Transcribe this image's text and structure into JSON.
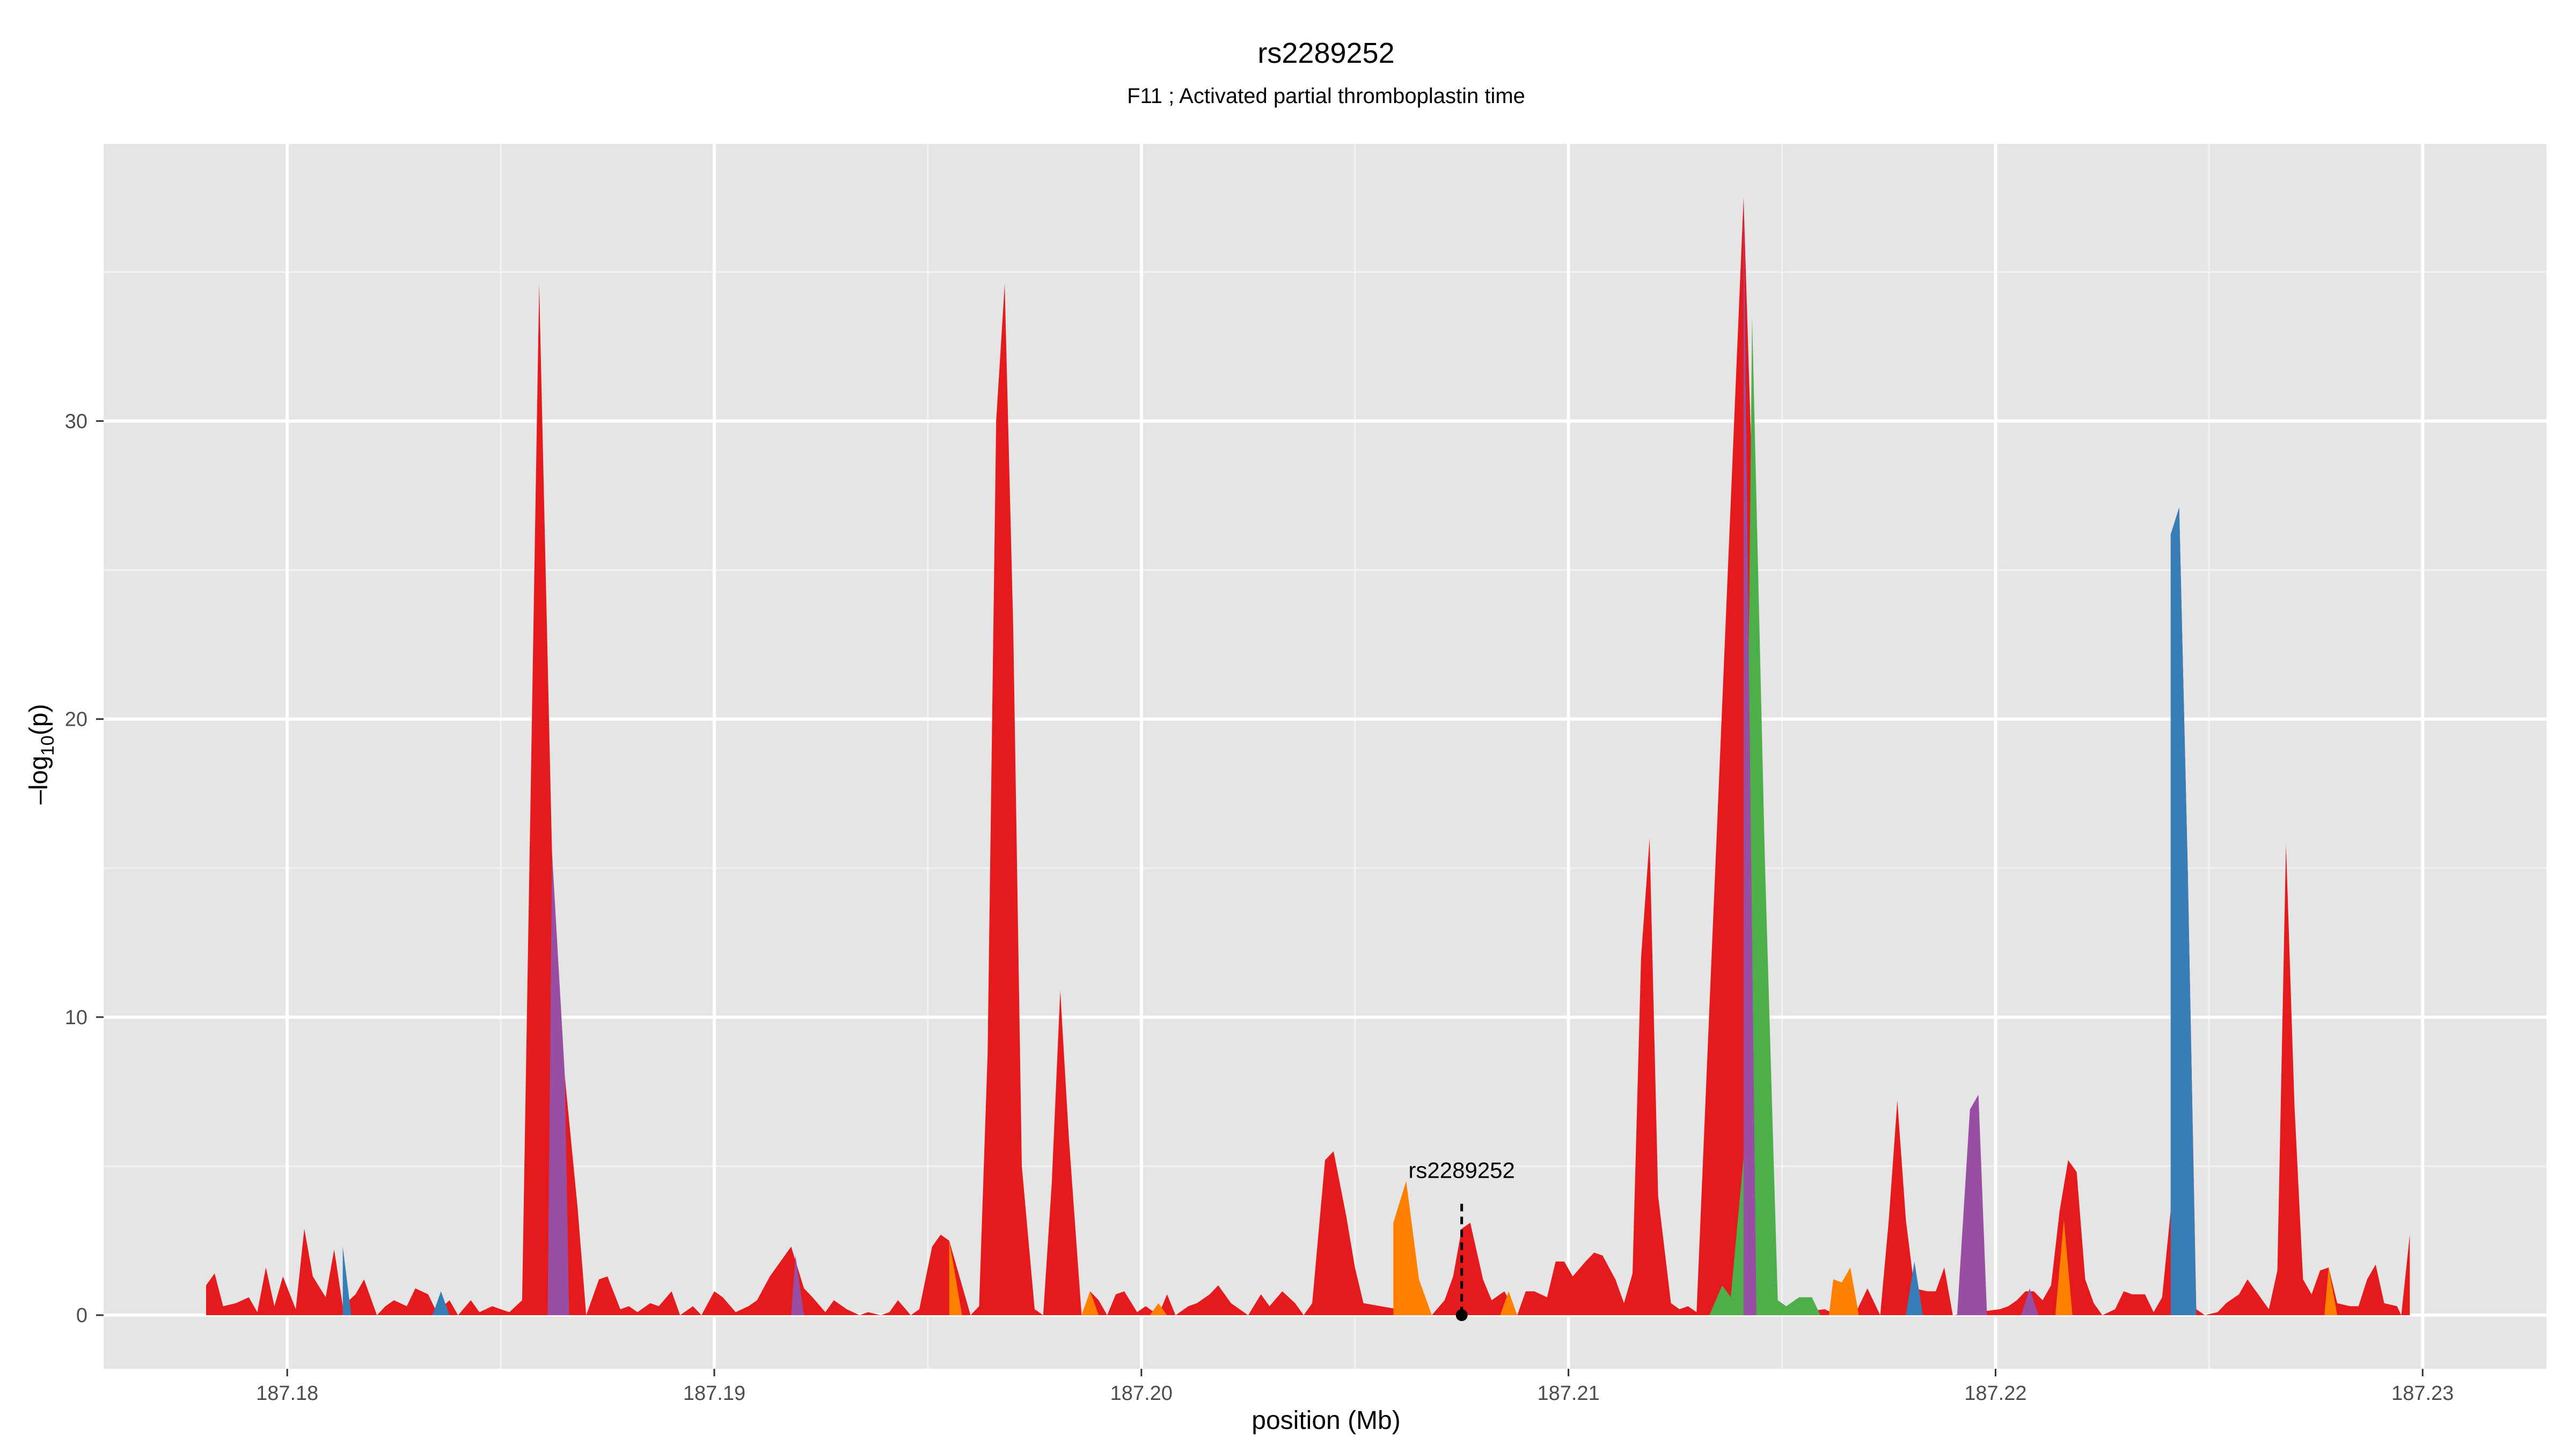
{
  "chart_data": {
    "type": "area",
    "title": "rs2289252",
    "subtitle": "F11 ; Activated partial thromboplastin time",
    "xlabel": "position (Mb)",
    "ylabel_main": "–log",
    "ylabel_sub": "10",
    "ylabel_tail": "(p)",
    "xlim": [
      187.1757,
      187.2329
    ],
    "ylim": [
      -1.8,
      39.3
    ],
    "x_ticks": [
      187.18,
      187.19,
      187.2,
      187.21,
      187.22,
      187.23
    ],
    "x_tick_labels": [
      "187.18",
      "187.19",
      "187.20",
      "187.21",
      "187.22",
      "187.23"
    ],
    "y_ticks": [
      0,
      10,
      20,
      30
    ],
    "y_tick_labels": [
      "0",
      "10",
      "20",
      "30"
    ],
    "grid": true,
    "background": "#e5e5e5",
    "colors": {
      "red": "#e41a1c",
      "blue": "#377eb8",
      "green": "#4daf4a",
      "purple": "#984ea3",
      "orange": "#ff7f00"
    },
    "annotation": {
      "label": "rs2289252",
      "x": 187.2075,
      "y": 0,
      "label_y": 4.6
    },
    "series": [
      {
        "color": "red",
        "points": [
          [
            187.1781,
            0
          ],
          [
            187.1781,
            1.0
          ],
          [
            187.1783,
            1.4
          ],
          [
            187.1785,
            0.3
          ],
          [
            187.1788,
            0.4
          ],
          [
            187.1791,
            0.6
          ],
          [
            187.1793,
            0.1
          ],
          [
            187.1795,
            1.6
          ],
          [
            187.1797,
            0.3
          ],
          [
            187.1799,
            1.3
          ],
          [
            187.1802,
            0.2
          ],
          [
            187.1804,
            2.9
          ],
          [
            187.1806,
            1.3
          ],
          [
            187.1809,
            0.6
          ],
          [
            187.1811,
            2.2
          ],
          [
            187.1813,
            0.3
          ],
          [
            187.1816,
            0.7
          ],
          [
            187.1818,
            1.2
          ],
          [
            187.1821,
            0
          ],
          [
            187.1823,
            0.3
          ],
          [
            187.1825,
            0.5
          ],
          [
            187.1828,
            0.3
          ],
          [
            187.183,
            0.9
          ],
          [
            187.1833,
            0.7
          ],
          [
            187.1835,
            0.1
          ],
          [
            187.1838,
            0.5
          ],
          [
            187.184,
            0
          ],
          [
            187.1843,
            0.5
          ],
          [
            187.1845,
            0.1
          ],
          [
            187.1848,
            0.3
          ],
          [
            187.185,
            0.2
          ],
          [
            187.1852,
            0.1
          ],
          [
            187.1855,
            0.5
          ],
          [
            187.1859,
            34.6
          ],
          [
            187.1862,
            15.5
          ],
          [
            187.1865,
            8
          ],
          [
            187.1868,
            3.6
          ],
          [
            187.187,
            0
          ],
          [
            187.1873,
            1.2
          ],
          [
            187.1875,
            1.3
          ],
          [
            187.1878,
            0.2
          ],
          [
            187.188,
            0.3
          ],
          [
            187.1882,
            0.1
          ],
          [
            187.1885,
            0.4
          ],
          [
            187.1887,
            0.3
          ],
          [
            187.189,
            0.8
          ],
          [
            187.1892,
            0
          ],
          [
            187.1895,
            0.3
          ],
          [
            187.1897,
            0
          ],
          [
            187.19,
            0.8
          ],
          [
            187.1902,
            0.6
          ],
          [
            187.1905,
            0.1
          ],
          [
            187.1908,
            0.3
          ],
          [
            187.191,
            0.5
          ],
          [
            187.1913,
            1.3
          ],
          [
            187.1918,
            2.3
          ],
          [
            187.1921,
            0.9
          ],
          [
            187.1923,
            0.6
          ],
          [
            187.1926,
            0.1
          ],
          [
            187.1928,
            0.5
          ],
          [
            187.1931,
            0.2
          ],
          [
            187.1934,
            0
          ],
          [
            187.1936,
            0.1
          ],
          [
            187.1939,
            0
          ],
          [
            187.1941,
            0.1
          ],
          [
            187.1943,
            0.5
          ],
          [
            187.1946,
            0
          ],
          [
            187.1948,
            0.2
          ],
          [
            187.1951,
            2.3
          ],
          [
            187.1953,
            2.7
          ],
          [
            187.1955,
            2.5
          ],
          [
            187.196,
            0
          ],
          [
            187.1962,
            0.3
          ],
          [
            187.1964,
            8.8
          ],
          [
            187.1966,
            30
          ],
          [
            187.1968,
            34.6
          ],
          [
            187.197,
            23
          ],
          [
            187.1972,
            5
          ],
          [
            187.1975,
            0.2
          ],
          [
            187.1977,
            0
          ],
          [
            187.1979,
            4.4
          ],
          [
            187.1981,
            10.9
          ],
          [
            187.1983,
            6
          ],
          [
            187.1986,
            0
          ],
          [
            187.1988,
            0.8
          ],
          [
            187.199,
            0.5
          ],
          [
            187.1992,
            0
          ],
          [
            187.1994,
            0.7
          ],
          [
            187.1996,
            0.8
          ],
          [
            187.1999,
            0.1
          ],
          [
            187.2001,
            0.3
          ],
          [
            187.2004,
            0
          ],
          [
            187.2006,
            0.7
          ],
          [
            187.2008,
            0
          ],
          [
            187.2011,
            0.3
          ],
          [
            187.2013,
            0.4
          ],
          [
            187.2016,
            0.7
          ],
          [
            187.2018,
            1.0
          ],
          [
            187.2021,
            0.4
          ],
          [
            187.2023,
            0.2
          ],
          [
            187.2025,
            0
          ],
          [
            187.2028,
            0.7
          ],
          [
            187.203,
            0.3
          ],
          [
            187.2033,
            0.8
          ],
          [
            187.2036,
            0.4
          ],
          [
            187.2038,
            0
          ],
          [
            187.204,
            0.4
          ],
          [
            187.2043,
            5.2
          ],
          [
            187.2045,
            5.5
          ],
          [
            187.2048,
            3.3
          ],
          [
            187.205,
            1.6
          ],
          [
            187.2052,
            0.4
          ],
          [
            187.2068,
            0
          ],
          [
            187.2071,
            0.5
          ],
          [
            187.2073,
            1.3
          ],
          [
            187.2075,
            2.9
          ],
          [
            187.2077,
            3.1
          ],
          [
            187.208,
            1.2
          ],
          [
            187.2082,
            0.5
          ],
          [
            187.2085,
            0.8
          ],
          [
            187.2088,
            0
          ],
          [
            187.209,
            0.8
          ],
          [
            187.2092,
            0.8
          ],
          [
            187.2095,
            0.6
          ],
          [
            187.2097,
            1.8
          ],
          [
            187.2099,
            1.8
          ],
          [
            187.2101,
            1.3
          ],
          [
            187.2104,
            1.8
          ],
          [
            187.2106,
            2.1
          ],
          [
            187.2108,
            2
          ],
          [
            187.2111,
            1.2
          ],
          [
            187.2113,
            0.4
          ],
          [
            187.2115,
            1.4
          ],
          [
            187.2117,
            12
          ],
          [
            187.2119,
            16
          ],
          [
            187.2121,
            4
          ],
          [
            187.2124,
            0.4
          ],
          [
            187.2126,
            0.2
          ],
          [
            187.2128,
            0.3
          ],
          [
            187.213,
            0.1
          ],
          [
            187.2141,
            37.5
          ],
          [
            187.2149,
            0
          ],
          [
            187.216,
            0.2
          ],
          [
            187.2163,
            0
          ],
          [
            187.2165,
            0.9
          ],
          [
            187.2167,
            0
          ],
          [
            187.217,
            0.9
          ],
          [
            187.2173,
            0
          ],
          [
            187.2175,
            3.2
          ],
          [
            187.2177,
            7.2
          ],
          [
            187.2179,
            3.2
          ],
          [
            187.2181,
            0.9
          ],
          [
            187.2184,
            0.8
          ],
          [
            187.2186,
            0.8
          ],
          [
            187.2188,
            1.6
          ],
          [
            187.219,
            0
          ],
          [
            187.2201,
            0.2
          ],
          [
            187.2203,
            0.3
          ],
          [
            187.2205,
            0.5
          ],
          [
            187.2207,
            0.8
          ],
          [
            187.2209,
            0.8
          ],
          [
            187.2211,
            0.5
          ],
          [
            187.2213,
            1
          ],
          [
            187.2215,
            3.5
          ],
          [
            187.2217,
            5.2
          ],
          [
            187.2219,
            4.8
          ],
          [
            187.2221,
            1.2
          ],
          [
            187.2223,
            0.4
          ],
          [
            187.2225,
            0
          ],
          [
            187.2228,
            0.2
          ],
          [
            187.223,
            0.8
          ],
          [
            187.2232,
            0.7
          ],
          [
            187.2235,
            0.7
          ],
          [
            187.2237,
            0.1
          ],
          [
            187.2239,
            0.6
          ],
          [
            187.2241,
            3.5
          ],
          [
            187.2243,
            27.1
          ],
          [
            187.2245,
            15
          ],
          [
            187.2247,
            0.2
          ],
          [
            187.2249,
            0
          ],
          [
            187.2252,
            0.1
          ],
          [
            187.2254,
            0.4
          ],
          [
            187.2257,
            0.7
          ],
          [
            187.2259,
            1.2
          ],
          [
            187.2262,
            0.6
          ],
          [
            187.2264,
            0.2
          ],
          [
            187.2266,
            1.5
          ],
          [
            187.2268,
            15.8
          ],
          [
            187.227,
            7
          ],
          [
            187.2272,
            1.2
          ],
          [
            187.2274,
            0.7
          ],
          [
            187.2276,
            1.5
          ],
          [
            187.2278,
            1.6
          ],
          [
            187.228,
            0.4
          ],
          [
            187.2283,
            0.3
          ],
          [
            187.2285,
            0.3
          ],
          [
            187.2287,
            1.2
          ],
          [
            187.2289,
            1.7
          ],
          [
            187.2291,
            0.4
          ],
          [
            187.2294,
            0.3
          ],
          [
            187.2295,
            0
          ],
          [
            187.2297,
            2.7
          ],
          [
            187.2297,
            0
          ]
        ]
      },
      {
        "color": "blue",
        "points": [
          [
            187.1813,
            0
          ],
          [
            187.1813,
            2.3
          ],
          [
            187.1815,
            0
          ]
        ]
      },
      {
        "color": "blue",
        "points": [
          [
            187.1834,
            0
          ],
          [
            187.1836,
            0.8
          ],
          [
            187.1838,
            0
          ]
        ]
      },
      {
        "color": "purple",
        "points": [
          [
            187.1861,
            0
          ],
          [
            187.1862,
            15.5
          ],
          [
            187.1865,
            8
          ],
          [
            187.1866,
            0
          ]
        ]
      },
      {
        "color": "purple",
        "points": [
          [
            187.1918,
            0
          ],
          [
            187.1919,
            2.0
          ],
          [
            187.1921,
            0
          ]
        ]
      },
      {
        "color": "orange",
        "points": [
          [
            187.1955,
            0
          ],
          [
            187.1955,
            2.5
          ],
          [
            187.1958,
            0
          ]
        ]
      },
      {
        "color": "orange",
        "points": [
          [
            187.1986,
            0
          ],
          [
            187.1988,
            0.8
          ],
          [
            187.199,
            0
          ]
        ]
      },
      {
        "color": "orange",
        "points": [
          [
            187.2002,
            0
          ],
          [
            187.2004,
            0.4
          ],
          [
            187.2006,
            0
          ]
        ]
      },
      {
        "color": "orange",
        "points": [
          [
            187.2059,
            0
          ],
          [
            187.2059,
            3.1
          ],
          [
            187.2062,
            4.5
          ],
          [
            187.2065,
            1.2
          ],
          [
            187.2068,
            0
          ]
        ]
      },
      {
        "color": "orange",
        "points": [
          [
            187.2084,
            0
          ],
          [
            187.2086,
            0.8
          ],
          [
            187.2088,
            0
          ]
        ]
      },
      {
        "color": "green",
        "points": [
          [
            187.2133,
            0
          ],
          [
            187.2136,
            1.0
          ],
          [
            187.2138,
            0.6
          ],
          [
            187.2141,
            5.3
          ],
          [
            187.2143,
            33.5
          ],
          [
            187.2146,
            15.2
          ],
          [
            187.2149,
            0.5
          ],
          [
            187.2151,
            0.3
          ],
          [
            187.2154,
            0.6
          ],
          [
            187.2157,
            0.6
          ],
          [
            187.2159,
            0
          ]
        ]
      },
      {
        "color": "purple",
        "points": [
          [
            187.2141,
            0
          ],
          [
            187.2141,
            37.5
          ],
          [
            187.2144,
            0
          ]
        ]
      },
      {
        "color": "orange",
        "points": [
          [
            187.2161,
            0
          ],
          [
            187.2162,
            1.2
          ],
          [
            187.2164,
            1.1
          ],
          [
            187.2166,
            1.6
          ],
          [
            187.2168,
            0
          ]
        ]
      },
      {
        "color": "blue",
        "points": [
          [
            187.2179,
            0
          ],
          [
            187.2181,
            1.8
          ],
          [
            187.2183,
            0
          ]
        ]
      },
      {
        "color": "purple",
        "points": [
          [
            187.2191,
            0
          ],
          [
            187.2194,
            6.9
          ],
          [
            187.2196,
            7.4
          ],
          [
            187.2198,
            0
          ]
        ]
      },
      {
        "color": "purple",
        "points": [
          [
            187.2206,
            0
          ],
          [
            187.2208,
            0.9
          ],
          [
            187.221,
            0
          ]
        ]
      },
      {
        "color": "orange",
        "points": [
          [
            187.2214,
            0
          ],
          [
            187.2216,
            3.2
          ],
          [
            187.2218,
            0
          ]
        ]
      },
      {
        "color": "blue",
        "points": [
          [
            187.2241,
            0
          ],
          [
            187.2241,
            26.2
          ],
          [
            187.2243,
            27.1
          ],
          [
            187.2245,
            15
          ],
          [
            187.2247,
            0
          ]
        ]
      },
      {
        "color": "orange",
        "points": [
          [
            187.2277,
            0
          ],
          [
            187.2278,
            1.6
          ],
          [
            187.228,
            0
          ]
        ]
      }
    ]
  }
}
